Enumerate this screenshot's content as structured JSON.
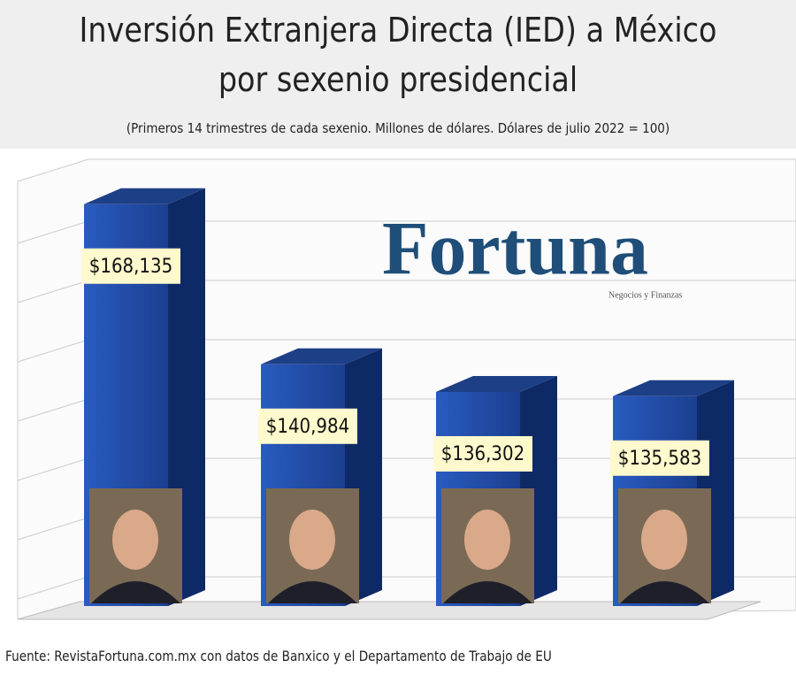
{
  "chart_data": {
    "type": "bar",
    "title": "Inversión Extranjera Directa (IED) a México",
    "title_line_2": "por sexenio presidencial",
    "subtitle": "(Primeros 14 trimestres de cada sexenio. Millones de dólares. Dólares de julio 2022 = 100)",
    "logo": "Fortuna",
    "logo_tagline": "Negocios y Finanzas",
    "source": "Fuente: RevistaFortuna.com.mx con datos de Banxico y el Departamento de Trabajo de EU",
    "values": [
      168135,
      140984,
      136302,
      135583
    ],
    "value_labels": [
      "$168,135",
      "$140,984",
      "$136,302",
      "$135,583"
    ],
    "color": "#1a3f8f",
    "ylim": [
      100000,
      175000
    ],
    "grid": true
  }
}
